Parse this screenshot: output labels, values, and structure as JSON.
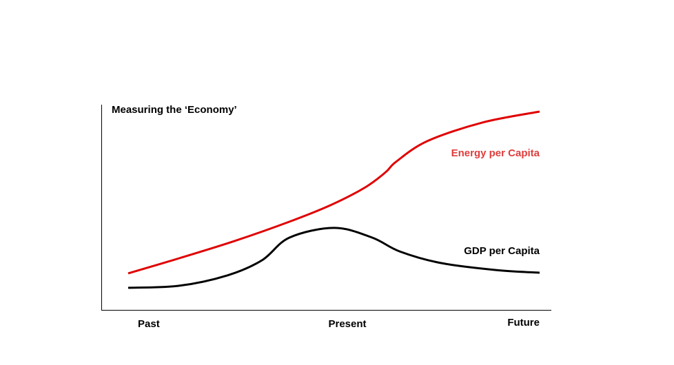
{
  "chart_data": {
    "type": "line",
    "title": "Measuring the ‘Economy’",
    "xlabel": "",
    "ylabel": "",
    "x_tick_labels": [
      "Past",
      "Present",
      "Future"
    ],
    "x_tick_positions": [
      0,
      50,
      100
    ],
    "xlim": [
      0,
      100
    ],
    "ylim": [
      0,
      100
    ],
    "grid": false,
    "legend": "inline labels at right end of lines",
    "series": [
      {
        "name": "Energy per Capita",
        "color": "#e00000",
        "label_color": "#e03c3c",
        "x": [
          0,
          12.4,
          25.8,
          39.2,
          49.2,
          57.6,
          62.6,
          65.1,
          72.7,
          86.1,
          100
        ],
        "y": [
          17.7,
          25,
          33.3,
          42.7,
          50.7,
          59.3,
          66.7,
          71.7,
          81.7,
          90.7,
          96
        ]
      },
      {
        "name": "GDP per Capita",
        "color": "#000000",
        "label_color": "#000000",
        "x": [
          0,
          12.4,
          24.1,
          32.5,
          39.2,
          50.1,
          59.3,
          66.0,
          76.0,
          89.4,
          100
        ],
        "y": [
          10.7,
          11.7,
          16.7,
          24,
          35,
          39.7,
          35,
          28.3,
          22.7,
          19.3,
          18
        ]
      }
    ]
  }
}
